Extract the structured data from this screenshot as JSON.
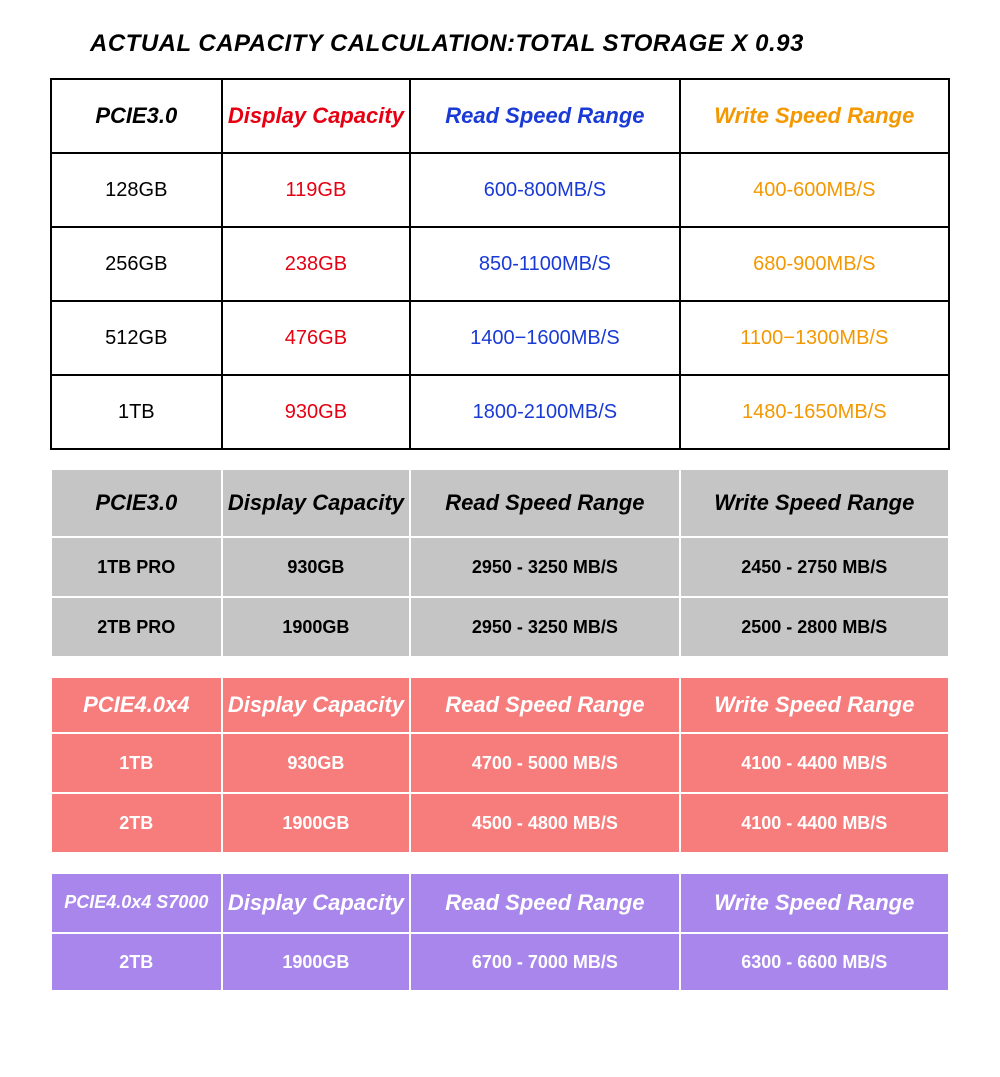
{
  "title": "ACTUAL CAPACITY CALCULATION:TOTAL STORAGE X 0.93",
  "headers": {
    "display": "Display Capacity",
    "read": "Read Speed Range",
    "write": "Write Speed Range"
  },
  "table1": {
    "product_header": "PCIE3.0",
    "header_colors": {
      "product": "#000000",
      "display": "#e60012",
      "read": "#1a3ad6",
      "write": "#f39800"
    },
    "border_color": "#000000",
    "background_color": "#ffffff",
    "header_fontsize": 22,
    "row_fontsize": 20,
    "rows": [
      {
        "product": "128GB",
        "display": "119GB",
        "read": "600-800MB/S",
        "write": "400-600MB/S"
      },
      {
        "product": "256GB",
        "display": "238GB",
        "read": "850-1100MB/S",
        "write": "680-900MB/S"
      },
      {
        "product": "512GB",
        "display": "476GB",
        "read": "1400−1600MB/S",
        "write": "1100−1300MB/S"
      },
      {
        "product": "1TB",
        "display": "930GB",
        "read": "1800-2100MB/S",
        "write": "1480-1650MB/S"
      }
    ]
  },
  "table2": {
    "product_header": "PCIE3.0",
    "background_color": "#c5c5c5",
    "border_color": "#ffffff",
    "text_color": "#000000",
    "header_fontsize": 22,
    "row_fontsize": 18,
    "rows": [
      {
        "product": "1TB PRO",
        "display": "930GB",
        "read": "2950 - 3250 MB/S",
        "write": "2450 - 2750 MB/S"
      },
      {
        "product": "2TB PRO",
        "display": "1900GB",
        "read": "2950 - 3250 MB/S",
        "write": "2500 - 2800 MB/S"
      }
    ]
  },
  "table3": {
    "product_header": "PCIE4.0x4",
    "background_color": "#f77c7c",
    "border_color": "#ffffff",
    "text_color": "#ffffff",
    "header_fontsize": 22,
    "row_fontsize": 18,
    "rows": [
      {
        "product": "1TB",
        "display": "930GB",
        "read": "4700 - 5000 MB/S",
        "write": "4100 - 4400 MB/S"
      },
      {
        "product": "2TB",
        "display": "1900GB",
        "read": "4500 - 4800 MB/S",
        "write": "4100 - 4400 MB/S"
      }
    ]
  },
  "table4": {
    "product_header": "PCIE4.0x4 S7000",
    "background_color": "#a886ec",
    "border_color": "#ffffff",
    "text_color": "#ffffff",
    "header_fontsize": 22,
    "row_fontsize": 18,
    "rows": [
      {
        "product": "2TB",
        "display": "1900GB",
        "read": "6700 - 7000 MB/S",
        "write": "6300 - 6600 MB/S"
      }
    ]
  }
}
